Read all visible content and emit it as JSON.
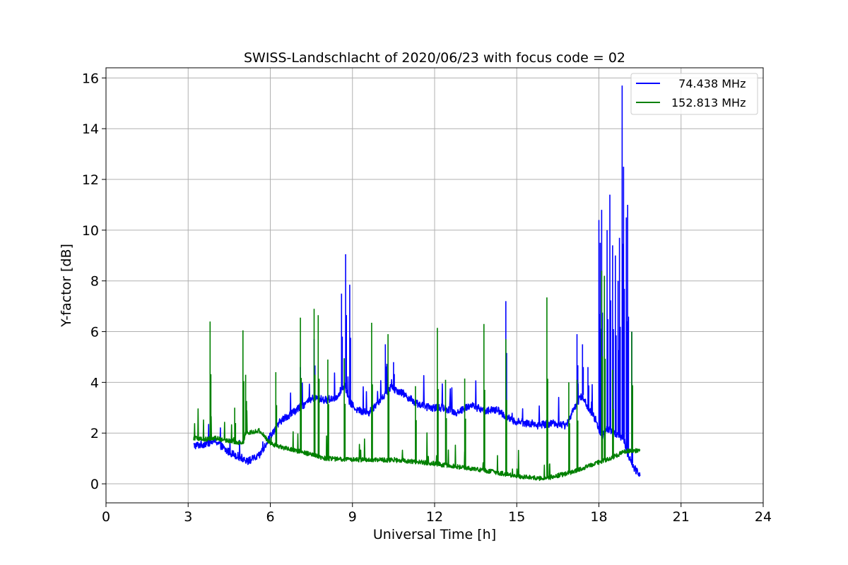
{
  "chart_data": {
    "type": "line",
    "title": "SWISS-Landschlacht of 2020/06/23 with focus code = 02",
    "xlabel": "Universal Time [h]",
    "ylabel": "Y-factor [dB]",
    "xlim": [
      0,
      24
    ],
    "ylim": [
      -0.75,
      16.4
    ],
    "xticks": [
      0,
      3,
      6,
      9,
      12,
      15,
      18,
      21,
      24
    ],
    "yticks": [
      0,
      2,
      4,
      6,
      8,
      10,
      12,
      14,
      16
    ],
    "grid": true,
    "legend_position": "top-right",
    "colors": {
      "series_1": "#0000ff",
      "series_2": "#008000"
    },
    "series": [
      {
        "name": "  74.438 MHz",
        "color": "#0000ff",
        "baseline": [
          [
            3.2,
            1.5
          ],
          [
            3.5,
            1.55
          ],
          [
            4.0,
            1.7
          ],
          [
            4.4,
            1.3
          ],
          [
            4.8,
            1.1
          ],
          [
            5.2,
            0.9
          ],
          [
            5.6,
            1.1
          ],
          [
            6.0,
            1.9
          ],
          [
            6.4,
            2.5
          ],
          [
            6.8,
            2.8
          ],
          [
            7.2,
            3.1
          ],
          [
            7.6,
            3.4
          ],
          [
            8.0,
            3.3
          ],
          [
            8.4,
            3.4
          ],
          [
            8.7,
            3.9
          ],
          [
            8.9,
            3.2
          ],
          [
            9.2,
            2.9
          ],
          [
            9.6,
            2.8
          ],
          [
            10.0,
            3.3
          ],
          [
            10.4,
            3.8
          ],
          [
            10.8,
            3.6
          ],
          [
            11.3,
            3.2
          ],
          [
            11.8,
            3.0
          ],
          [
            12.3,
            3.0
          ],
          [
            12.8,
            2.8
          ],
          [
            13.3,
            3.1
          ],
          [
            13.8,
            2.9
          ],
          [
            14.3,
            2.9
          ],
          [
            14.8,
            2.5
          ],
          [
            15.3,
            2.4
          ],
          [
            15.8,
            2.3
          ],
          [
            16.3,
            2.4
          ],
          [
            16.8,
            2.3
          ],
          [
            17.1,
            3.0
          ],
          [
            17.4,
            3.5
          ],
          [
            17.6,
            3.0
          ],
          [
            17.9,
            2.5
          ],
          [
            18.1,
            1.8
          ],
          [
            18.3,
            2.2
          ],
          [
            18.6,
            2.0
          ],
          [
            18.9,
            1.8
          ],
          [
            19.1,
            1.0
          ],
          [
            19.3,
            0.6
          ],
          [
            19.5,
            0.4
          ]
        ],
        "noise": 0.15,
        "spikes": [
          [
            7.1,
            4.6
          ],
          [
            7.6,
            5.7
          ],
          [
            8.6,
            7.5
          ],
          [
            8.75,
            9.05
          ],
          [
            8.9,
            7.85
          ],
          [
            10.2,
            5.5
          ],
          [
            10.5,
            4.8
          ],
          [
            14.6,
            7.2
          ],
          [
            17.2,
            5.9
          ],
          [
            17.4,
            5.5
          ],
          [
            17.6,
            4.6
          ],
          [
            18.0,
            10.4
          ],
          [
            18.05,
            9.5
          ],
          [
            18.1,
            10.8
          ],
          [
            18.3,
            10.0
          ],
          [
            18.4,
            11.4
          ],
          [
            18.5,
            9.4
          ],
          [
            18.6,
            9.0
          ],
          [
            18.7,
            8.0
          ],
          [
            18.75,
            9.7
          ],
          [
            18.85,
            15.7
          ],
          [
            18.9,
            12.5
          ],
          [
            19.0,
            10.5
          ],
          [
            19.05,
            11.0
          ],
          [
            19.2,
            6.0
          ]
        ]
      },
      {
        "name": "152.813 MHz",
        "color": "#008000",
        "baseline": [
          [
            3.2,
            1.8
          ],
          [
            3.6,
            1.75
          ],
          [
            4.0,
            1.8
          ],
          [
            4.5,
            1.7
          ],
          [
            5.0,
            1.6
          ],
          [
            5.1,
            2.0
          ],
          [
            5.6,
            2.1
          ],
          [
            6.0,
            1.6
          ],
          [
            6.5,
            1.4
          ],
          [
            7.0,
            1.3
          ],
          [
            8.0,
            1.0
          ],
          [
            9.0,
            0.95
          ],
          [
            10.0,
            0.95
          ],
          [
            11.0,
            0.9
          ],
          [
            12.0,
            0.8
          ],
          [
            13.0,
            0.65
          ],
          [
            14.0,
            0.5
          ],
          [
            15.0,
            0.3
          ],
          [
            16.0,
            0.2
          ],
          [
            17.0,
            0.45
          ],
          [
            18.0,
            0.85
          ],
          [
            18.5,
            1.05
          ],
          [
            19.0,
            1.3
          ],
          [
            19.5,
            1.3
          ]
        ],
        "noise": 0.09,
        "spikes": [
          [
            3.8,
            6.4
          ],
          [
            4.7,
            3.0
          ],
          [
            5.0,
            6.05
          ],
          [
            5.1,
            4.3
          ],
          [
            6.2,
            4.4
          ],
          [
            7.1,
            6.55
          ],
          [
            7.6,
            6.9
          ],
          [
            7.75,
            6.65
          ],
          [
            8.1,
            4.9
          ],
          [
            8.7,
            4.95
          ],
          [
            9.7,
            6.35
          ],
          [
            10.3,
            5.9
          ],
          [
            11.3,
            3.85
          ],
          [
            12.1,
            6.15
          ],
          [
            12.4,
            4.1
          ],
          [
            13.1,
            4.15
          ],
          [
            13.8,
            6.3
          ],
          [
            14.6,
            5.7
          ],
          [
            16.1,
            7.35
          ],
          [
            16.9,
            4.0
          ],
          [
            17.2,
            4.1
          ],
          [
            18.1,
            8.4
          ],
          [
            18.2,
            8.2
          ],
          [
            18.5,
            4.5
          ],
          [
            19.2,
            6.0
          ]
        ]
      }
    ]
  }
}
